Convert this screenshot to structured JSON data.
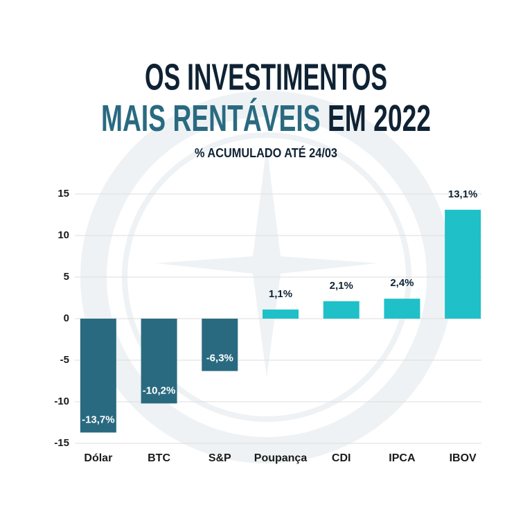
{
  "chart_data": {
    "type": "bar",
    "title": [
      "OS INVESTIMENTOS",
      "MAIS RENTÁVEIS",
      "EM 2022"
    ],
    "title_colors": [
      "#0f2233",
      "#2a6a80",
      "#0f2233"
    ],
    "subtitle": "% ACUMULADO ATÉ 24/03",
    "categories": [
      "Dólar",
      "BTC",
      "S&P",
      "Poupança",
      "CDI",
      "IPCA",
      "IBOV"
    ],
    "values": [
      -13.7,
      -10.2,
      -6.3,
      1.1,
      2.1,
      2.4,
      13.1
    ],
    "value_labels": [
      "-13,7%",
      "-10,2%",
      "-6,3%",
      "1,1%",
      "2,1%",
      "2,4%",
      "13,1%"
    ],
    "colors": [
      "#2a6a80",
      "#2a6a80",
      "#2a6a80",
      "#1fc0c8",
      "#1fc0c8",
      "#1fc0c8",
      "#1fc0c8"
    ],
    "ylim": [
      -15,
      15
    ],
    "yticks": [
      -15,
      -10,
      -5,
      0,
      5,
      10,
      15
    ],
    "grid": true
  }
}
